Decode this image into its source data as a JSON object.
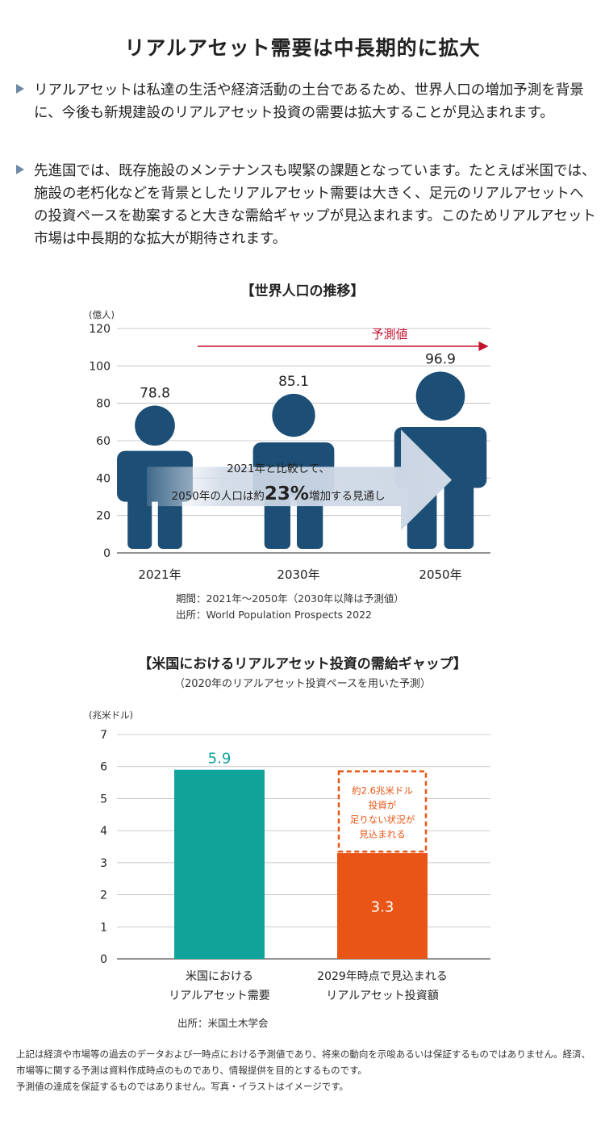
{
  "page": {
    "title": "リアルアセット需要は中長期的に拡大",
    "bullets": [
      "リアルアセットは私達の生活や経済活動の土台であるため、世界人口の増加予測を背景に、今後も新規建設のリアルアセット投資の需要は拡大することが見込まれます。",
      "先進国では、既存施設のメンテナンスも喫緊の課題となっています。たとえば米国では、施設の老朽化などを背景としたリアルアセット需要は大きく、足元のリアルアセットへの投資ペースを勘案すると大きな需給ギャップが見込まれます。このためリアルアセット市場は中長期的な拡大が期待されます。"
    ],
    "disclaimer": [
      "上記は経済や市場等の過去のデータおよび一時点における予測値であり、将来の動向を示唆あるいは保証するものではありません。経済、市場等に関する予測は資料作成時点のものであり、情報提供を目的とするものです。",
      "予測値の達成を保証するものではありません。写真・イラストはイメージです。"
    ]
  },
  "chart_data": [
    {
      "type": "bar",
      "title": "【世界人口の推移】",
      "ylabel": "(億人)",
      "ylim": [
        0,
        120
      ],
      "yticks": [
        0,
        20,
        40,
        60,
        80,
        100,
        120
      ],
      "categories": [
        "2021年",
        "2030年",
        "2050年"
      ],
      "values": [
        78.8,
        85.1,
        96.9
      ],
      "value_labels": [
        "78.8",
        "85.1",
        "96.9"
      ],
      "forecast_label": "予測値",
      "annotation": {
        "line1": "2021年と比較して、",
        "prefix": "2050年の人口は約",
        "highlight": "23%",
        "suffix": "増加する見通し"
      },
      "notes": [
        "期間：2021年～2050年（2030年以降は予測値）",
        "出所：World Population Prospects 2022"
      ],
      "colors": {
        "figure": "#1c4e76",
        "forecast": "#c4122f",
        "arrow": "#cfd9e6"
      },
      "grid": true
    },
    {
      "type": "bar",
      "title": "【米国におけるリアルアセット投資の需給ギャップ】",
      "subtitle": "（2020年のリアルアセット投資ペースを用いた予測）",
      "ylabel": "(兆米ドル)",
      "ylim": [
        0,
        7
      ],
      "yticks": [
        0,
        1,
        2,
        3,
        4,
        5,
        6,
        7
      ],
      "categories": [
        [
          "米国における",
          "リアルアセット需要"
        ],
        [
          "2029年時点で見込まれる",
          "リアルアセット投資額"
        ]
      ],
      "values": [
        5.9,
        3.3
      ],
      "value_labels": [
        "5.9",
        "3.3"
      ],
      "gap": {
        "value": 2.6,
        "lines": [
          "約2.6兆米ドル",
          "投資が",
          "足りない状況が",
          "見込まれる"
        ]
      },
      "notes": [
        "出所：米国土木学会"
      ],
      "colors": {
        "demand": "#0fa39a",
        "investment": "#e85516",
        "gap_border": "#e85516"
      },
      "grid": true
    }
  ]
}
